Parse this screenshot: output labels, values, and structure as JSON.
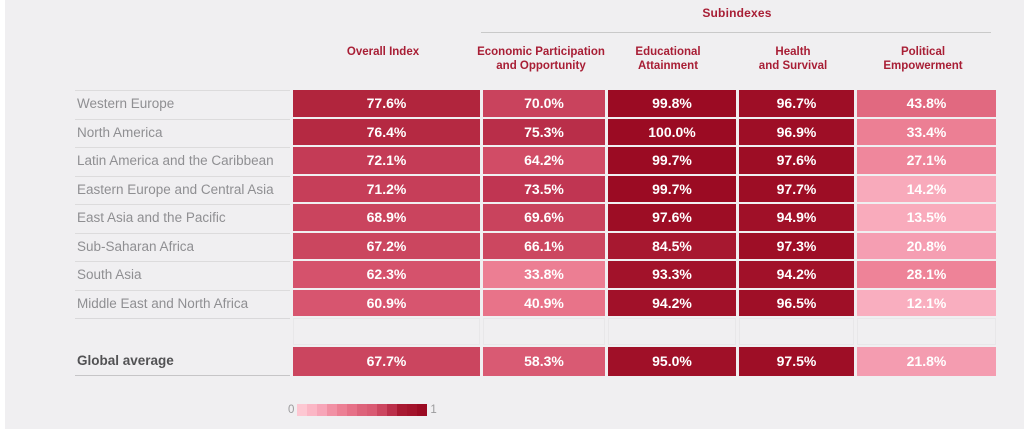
{
  "chart_data": {
    "type": "heatmap",
    "title": "Subindexes",
    "columns": [
      "Overall Index",
      "Economic Participation and Opportunity",
      "Educational Attainment",
      "Health and Survival",
      "Political Empowerment"
    ],
    "categories": [
      "Western Europe",
      "North America",
      "Latin America and the Caribbean",
      "Eastern Europe and Central Asia",
      "East Asia and the Pacific",
      "Sub-Saharan Africa",
      "South Asia",
      "Middle East and North Africa",
      "Global average"
    ],
    "series": [
      {
        "name": "Overall Index",
        "values": [
          77.6,
          76.4,
          72.1,
          71.2,
          68.9,
          67.2,
          62.3,
          60.9,
          67.7
        ]
      },
      {
        "name": "Economic Participation and Opportunity",
        "values": [
          70.0,
          75.3,
          64.2,
          73.5,
          69.6,
          66.1,
          33.8,
          40.9,
          58.3
        ]
      },
      {
        "name": "Educational Attainment",
        "values": [
          99.8,
          100.0,
          99.7,
          99.7,
          97.6,
          84.5,
          93.3,
          94.2,
          95.0
        ]
      },
      {
        "name": "Health and Survival",
        "values": [
          96.7,
          96.9,
          97.6,
          97.7,
          94.9,
          97.3,
          94.2,
          96.5,
          97.5
        ]
      },
      {
        "name": "Political Empowerment",
        "values": [
          43.8,
          33.4,
          27.1,
          14.2,
          13.5,
          20.8,
          28.1,
          12.1,
          21.8
        ]
      }
    ],
    "color_scale": {
      "min": 0,
      "max": 1,
      "min_label": "0",
      "max_label": "1"
    }
  },
  "table": {
    "group_header": "Subindexes",
    "columns": [
      "Overall Index",
      "Economic Participation\nand Opportunity",
      "Educational\nAttainment",
      "Health\nand Survival",
      "Political\nEmpowerment"
    ],
    "rows": [
      {
        "label": "Western Europe",
        "values": [
          "77.6%",
          "70.0%",
          "99.8%",
          "96.7%",
          "43.8%"
        ]
      },
      {
        "label": "North America",
        "values": [
          "76.4%",
          "75.3%",
          "100.0%",
          "96.9%",
          "33.4%"
        ]
      },
      {
        "label": "Latin America and the Caribbean",
        "values": [
          "72.1%",
          "64.2%",
          "99.7%",
          "97.6%",
          "27.1%"
        ]
      },
      {
        "label": "Eastern Europe and Central Asia",
        "values": [
          "71.2%",
          "73.5%",
          "99.7%",
          "97.7%",
          "14.2%"
        ]
      },
      {
        "label": "East Asia and the Pacific",
        "values": [
          "68.9%",
          "69.6%",
          "97.6%",
          "94.9%",
          "13.5%"
        ]
      },
      {
        "label": "Sub-Saharan Africa",
        "values": [
          "67.2%",
          "66.1%",
          "84.5%",
          "97.3%",
          "20.8%"
        ]
      },
      {
        "label": "South Asia",
        "values": [
          "62.3%",
          "33.8%",
          "93.3%",
          "94.2%",
          "28.1%"
        ]
      },
      {
        "label": "Middle East and North Africa",
        "values": [
          "60.9%",
          "40.9%",
          "94.2%",
          "96.5%",
          "12.1%"
        ]
      }
    ],
    "global_row": {
      "label": "Global average",
      "values": [
        "67.7%",
        "58.3%",
        "95.0%",
        "97.5%",
        "21.8%"
      ]
    }
  },
  "legend": {
    "min_label": "0",
    "max_label": "1",
    "steps": 13
  },
  "colors": {
    "header_text": "#a81e35",
    "background": "#f0eff1",
    "ramp": [
      {
        "v": 0.0,
        "c": "#fdc7d2"
      },
      {
        "v": 0.1,
        "c": "#fab2c2"
      },
      {
        "v": 0.15,
        "c": "#f8a8ba"
      },
      {
        "v": 0.22,
        "c": "#f49cb0"
      },
      {
        "v": 0.28,
        "c": "#ee8398"
      },
      {
        "v": 0.34,
        "c": "#ec7e93"
      },
      {
        "v": 0.41,
        "c": "#e87389"
      },
      {
        "v": 0.45,
        "c": "#de647c"
      },
      {
        "v": 0.55,
        "c": "#dc6078"
      },
      {
        "v": 0.62,
        "c": "#d6536d"
      },
      {
        "v": 0.66,
        "c": "#cc4760"
      },
      {
        "v": 0.7,
        "c": "#c9435d"
      },
      {
        "v": 0.74,
        "c": "#bf3350"
      },
      {
        "v": 0.77,
        "c": "#b2273f"
      },
      {
        "v": 0.8,
        "c": "#ab1c34"
      },
      {
        "v": 0.86,
        "c": "#a6162e"
      },
      {
        "v": 0.93,
        "c": "#a2122a"
      },
      {
        "v": 1.0,
        "c": "#9b0b23"
      }
    ]
  }
}
